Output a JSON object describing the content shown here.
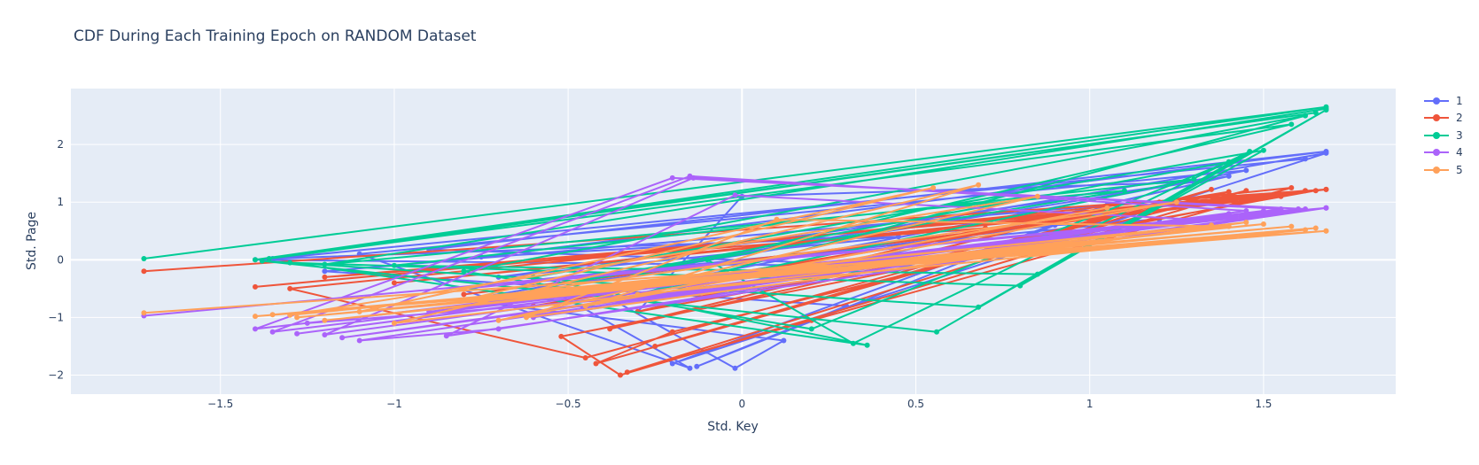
{
  "chart_data": {
    "type": "line",
    "title": "CDF During Each Training Epoch on RANDOM Dataset",
    "xlabel": "Std. Key",
    "ylabel": "Std. Page",
    "xlim": [
      -1.93,
      1.88
    ],
    "ylim": [
      -2.33,
      2.97
    ],
    "x_ticks": [
      -1.5,
      -1,
      -0.5,
      0,
      0.5,
      1,
      1.5
    ],
    "x_tick_labels": [
      "−1.5",
      "−1",
      "−0.5",
      "0",
      "0.5",
      "1",
      "1.5"
    ],
    "y_ticks": [
      -2,
      -1,
      0,
      1,
      2
    ],
    "y_tick_labels": [
      "−2",
      "−1",
      "0",
      "1",
      "2"
    ],
    "grid": true,
    "legend_position": "top-right",
    "series": [
      {
        "name": "1",
        "color": "#636efa",
        "x": [
          -1.4,
          0.55,
          -0.9,
          1.68,
          -0.75,
          1.2,
          -0.6,
          -0.15,
          -1.1,
          1.45,
          -0.4,
          -0.02,
          0.12,
          -0.8,
          1.68,
          -0.2,
          1.05,
          -1.2,
          0.3,
          -0.13,
          0.9,
          -0.55,
          1.4,
          -0.3,
          0.0,
          1.3,
          -0.7,
          0.45,
          -1.35,
          1.62
        ],
        "y": [
          0.0,
          -0.12,
          0.18,
          1.88,
          0.05,
          0.7,
          -0.35,
          -1.88,
          0.1,
          1.55,
          -0.6,
          -1.88,
          -1.4,
          -0.7,
          1.85,
          -1.8,
          0.95,
          -0.2,
          -0.8,
          -1.85,
          0.6,
          -0.45,
          1.45,
          -0.9,
          1.1,
          1.35,
          -0.3,
          0.4,
          0.02,
          1.75
        ]
      },
      {
        "name": "2",
        "color": "#ef553b",
        "x": [
          -1.72,
          1.68,
          -1.4,
          1.62,
          -0.52,
          -0.35,
          1.45,
          -0.2,
          -0.42,
          1.35,
          -0.33,
          0.2,
          1.58,
          -1.3,
          -0.45,
          1.2,
          -0.25,
          1.1,
          -0.6,
          1.4,
          -0.38,
          0.95,
          -1.0,
          1.68,
          -0.8,
          1.55,
          -1.2,
          0.7,
          -0.3,
          1.65
        ],
        "y": [
          -0.2,
          1.22,
          -0.47,
          1.2,
          -1.33,
          -2.0,
          1.2,
          -1.25,
          -1.8,
          1.22,
          -1.95,
          -1.05,
          1.25,
          -0.5,
          -1.7,
          1.0,
          -1.5,
          0.85,
          -0.8,
          1.18,
          -1.2,
          0.75,
          -0.4,
          1.22,
          -0.6,
          1.1,
          -0.3,
          0.55,
          -0.9,
          1.2
        ]
      },
      {
        "name": "3",
        "color": "#00cc96",
        "x": [
          -1.72,
          1.68,
          -1.4,
          1.65,
          -1.36,
          1.58,
          -0.1,
          0.32,
          1.46,
          0.56,
          -1.38,
          0.68,
          1.68,
          0.8,
          -1.3,
          0.36,
          -0.6,
          1.5,
          0.85,
          -1.0,
          1.3,
          -0.3,
          1.62,
          -0.8,
          0.2,
          1.4,
          -0.5,
          1.1,
          -1.2,
          1.68
        ],
        "y": [
          0.02,
          2.65,
          0.0,
          2.55,
          0.02,
          2.35,
          0.0,
          -1.45,
          1.88,
          -1.25,
          -0.02,
          -0.82,
          2.6,
          -0.45,
          -0.05,
          -1.48,
          -0.3,
          1.9,
          -0.25,
          -0.1,
          1.4,
          -0.6,
          2.5,
          -0.2,
          -1.2,
          1.7,
          -0.4,
          1.2,
          -0.08,
          2.62
        ]
      },
      {
        "name": "4",
        "color": "#ab63fa",
        "x": [
          -1.72,
          1.68,
          -1.4,
          -0.2,
          1.62,
          -1.35,
          -0.15,
          1.45,
          -1.28,
          1.4,
          -1.2,
          -0.14,
          1.55,
          -1.15,
          1.68,
          -0.85,
          -0.02,
          1.3,
          -1.1,
          -0.7,
          1.2,
          -0.6,
          1.5,
          -0.9,
          1.0,
          -1.25,
          -0.4,
          1.6,
          -0.8,
          1.68
        ],
        "y": [
          -0.97,
          0.9,
          -1.2,
          1.42,
          0.88,
          -1.25,
          1.45,
          0.85,
          -1.28,
          0.8,
          -1.3,
          1.42,
          0.88,
          -1.35,
          0.9,
          -1.32,
          1.12,
          0.7,
          -1.4,
          -1.2,
          0.6,
          -1.0,
          0.85,
          -0.9,
          0.5,
          -1.1,
          -0.7,
          0.88,
          -0.5,
          0.9
        ]
      },
      {
        "name": "5",
        "color": "#ffa15a",
        "x": [
          -1.72,
          1.68,
          -1.4,
          1.65,
          -1.35,
          1.58,
          -1.28,
          1.5,
          -1.2,
          1.45,
          -0.62,
          0.1,
          1.4,
          -1.0,
          0.68,
          -0.45,
          1.25,
          -0.8,
          0.55,
          -1.1,
          1.62,
          -0.3,
          1.05,
          -0.7,
          0.85,
          -1.3,
          1.35,
          -0.5,
          1.68,
          -0.2
        ],
        "y": [
          -0.92,
          0.5,
          -0.98,
          0.55,
          -0.95,
          0.58,
          -1.0,
          0.62,
          -1.05,
          0.65,
          -1.0,
          0.7,
          0.58,
          -1.1,
          1.3,
          -0.8,
          1.0,
          -0.7,
          1.25,
          -0.9,
          0.52,
          -0.6,
          0.9,
          -1.05,
          1.1,
          -0.96,
          0.6,
          -0.5,
          0.5,
          -0.4
        ]
      }
    ]
  }
}
